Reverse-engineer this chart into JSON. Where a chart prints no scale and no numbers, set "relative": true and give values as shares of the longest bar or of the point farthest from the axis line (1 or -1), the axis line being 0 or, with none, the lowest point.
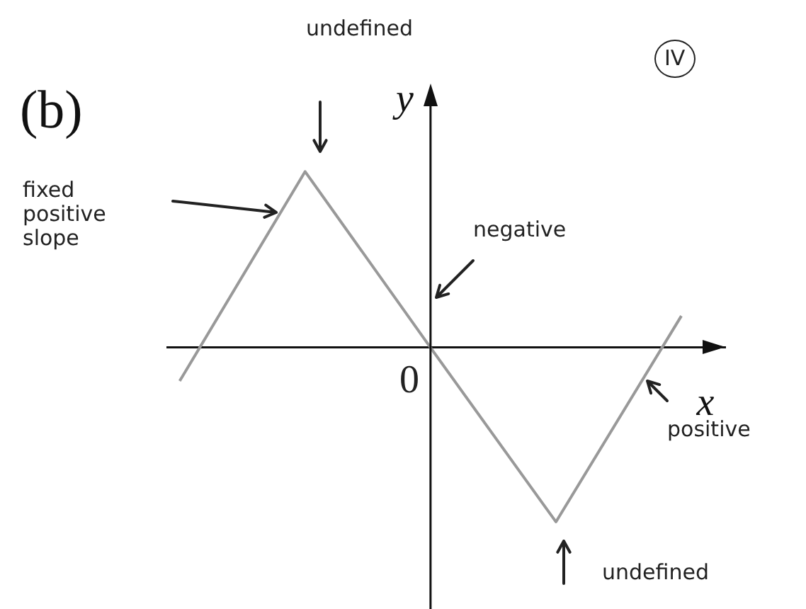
{
  "chart_data": {
    "type": "line",
    "title": "(b)",
    "xlabel": "x",
    "ylabel": "y",
    "relative": true,
    "marker": "none",
    "categories": [
      null,
      null,
      null,
      null,
      null
    ],
    "series": [
      {
        "color": "#999999",
        "values": [
          -0.19,
          1,
          0,
          -0.99,
          0.18
        ]
      }
    ],
    "annotations": [
      "undefined",
      "fixed positive slope",
      "negative",
      "IV",
      "positive",
      "undefined",
      "0"
    ]
  }
}
